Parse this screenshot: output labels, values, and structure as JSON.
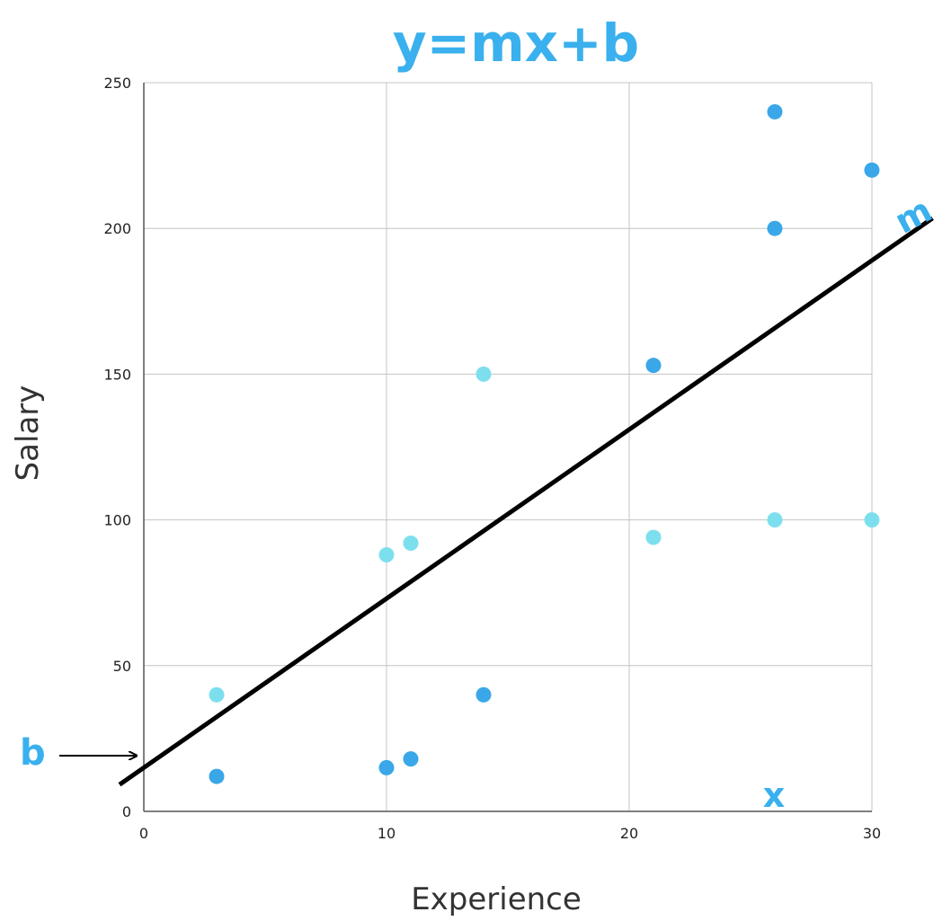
{
  "chart_data": {
    "type": "scatter",
    "title": "y=mx+b",
    "xlabel": "Experience",
    "ylabel": "Salary",
    "xlim": [
      0,
      30
    ],
    "ylim": [
      0,
      250
    ],
    "x_ticks": [
      0,
      10,
      20,
      30
    ],
    "y_ticks": [
      0,
      50,
      100,
      150,
      200,
      250
    ],
    "grid": true,
    "series": [
      {
        "color": "#3aa7e8",
        "points": [
          [
            3,
            12
          ],
          [
            10,
            15
          ],
          [
            11,
            18
          ],
          [
            14,
            40
          ],
          [
            21,
            153
          ],
          [
            26,
            200
          ],
          [
            26,
            240
          ],
          [
            30,
            220
          ]
        ]
      },
      {
        "color": "#7ddfee",
        "points": [
          [
            3,
            40
          ],
          [
            10,
            88
          ],
          [
            11,
            92
          ],
          [
            14,
            150
          ],
          [
            21,
            94
          ],
          [
            26,
            100
          ],
          [
            30,
            100
          ]
        ]
      }
    ],
    "regression_line": {
      "intercept": 15,
      "slope": 5.8,
      "x_start": -1,
      "x_end": 32.5,
      "color": "#000000"
    },
    "annotations": {
      "b": "b",
      "m": "m",
      "x": "x"
    },
    "accent_color": "#3ab0ee"
  }
}
